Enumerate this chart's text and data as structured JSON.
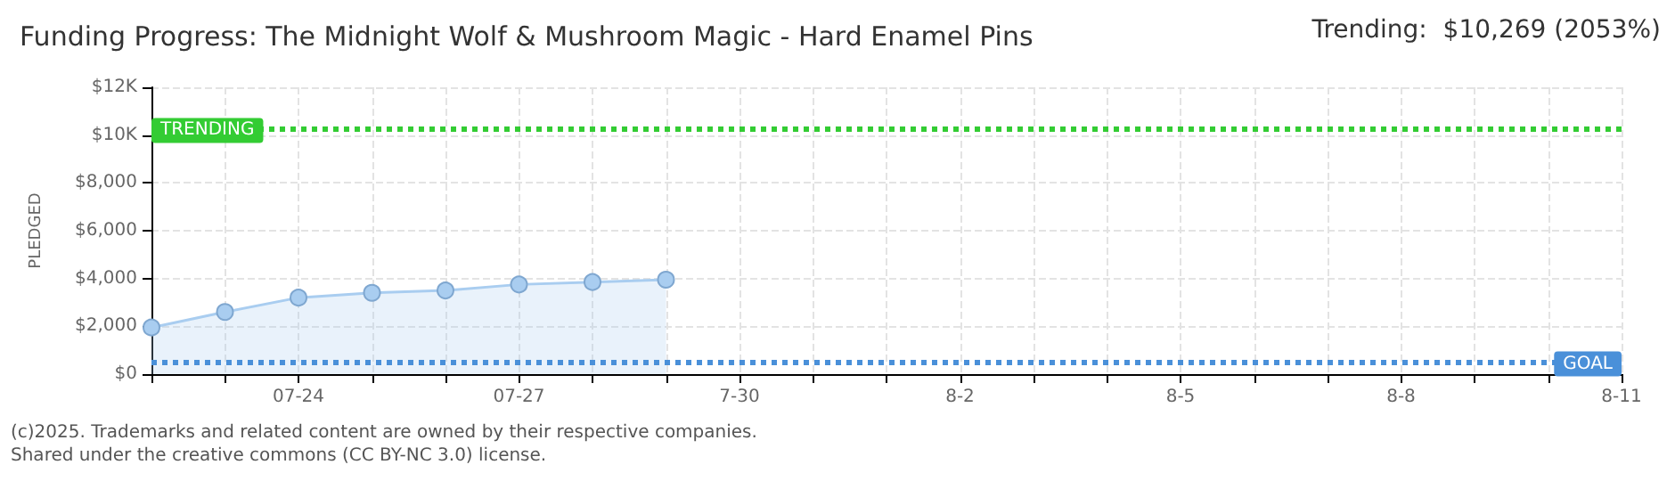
{
  "chart_data": {
    "type": "area",
    "title": "Funding Progress: The Midnight Wolf & Mushroom Magic - Hard Enamel Pins",
    "ylabel": "PLEDGED",
    "annotations": [
      "Trending:  $10,269 (2053%)",
      "(c)2025. Trademarks and related content are owned by their respective companies.",
      "Shared under the creative commons (CC BY-NC 3.0) license."
    ],
    "x": [
      "--07-22",
      "--07-23",
      "--07-24",
      "--07-25",
      "--07-26",
      "--07-27",
      "--07-28",
      "--07-29"
    ],
    "series": [
      {
        "color": "#a9cdf0",
        "values": [
          1950,
          2600,
          3200,
          3400,
          3500,
          3750,
          3850,
          3950
        ]
      }
    ],
    "marker": "circle",
    "grid": true,
    "xlim": [
      "--07-22",
      "--08-11"
    ],
    "xticks": [
      {
        "value": "--07-22",
        "label": null
      },
      {
        "value": "--07-23",
        "label": null
      },
      {
        "value": "--07-24",
        "label": "07-24"
      },
      {
        "value": "--07-25",
        "label": null
      },
      {
        "value": "--07-26",
        "label": null
      },
      {
        "value": "--07-27",
        "label": "07-27"
      },
      {
        "value": "--07-28",
        "label": null
      },
      {
        "value": "--07-29",
        "label": null
      },
      {
        "value": "--07-30",
        "label": "7-30"
      },
      {
        "value": "--07-31",
        "label": null
      },
      {
        "value": "--08-01",
        "label": null
      },
      {
        "value": "--08-02",
        "label": "8-2"
      },
      {
        "value": "--08-03",
        "label": null
      },
      {
        "value": "--08-04",
        "label": null
      },
      {
        "value": "--08-05",
        "label": "8-5"
      },
      {
        "value": "--08-06",
        "label": null
      },
      {
        "value": "--08-07",
        "label": null
      },
      {
        "value": "--08-08",
        "label": "8-8"
      },
      {
        "value": "--08-09",
        "label": null
      },
      {
        "value": "--08-10",
        "label": null
      },
      {
        "value": "--08-11",
        "label": "8-11"
      }
    ],
    "ylim": [
      0,
      12000
    ],
    "yticks": [
      {
        "value": 0,
        "label": "$0"
      },
      {
        "value": 2000,
        "label": "$2,000"
      },
      {
        "value": 4000,
        "label": "$4,000"
      },
      {
        "value": 6000,
        "label": "$6,000"
      },
      {
        "value": 8000,
        "label": "$8,000"
      },
      {
        "value": 10000,
        "label": "$10K"
      },
      {
        "value": 12000,
        "label": "$12K"
      }
    ],
    "ref_lines": [
      {
        "axis": "y",
        "value": 10269,
        "label": "TRENDING",
        "color": "#33cc33",
        "line_style": "dotted"
      },
      {
        "axis": "y",
        "value": 500,
        "label": "GOAL",
        "color": "#4a90d9",
        "line_style": "dotted"
      }
    ]
  }
}
